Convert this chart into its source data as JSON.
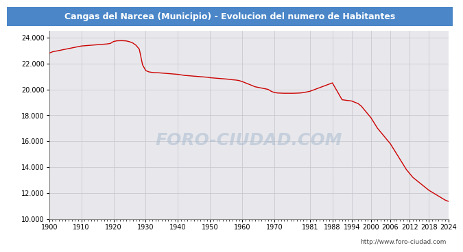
{
  "title": "Cangas del Narcea (Municipio) - Evolucion del numero de Habitantes",
  "title_bg_color": "#4a86c8",
  "title_text_color": "#ffffff",
  "plot_bg_color": "#e8e8ec",
  "fig_bg_color": "#ffffff",
  "line_color": "#cc0000",
  "line_width": 1.0,
  "watermark": "http://www.foro-ciudad.com",
  "watermark_text": "FORO-CIUDAD.COM",
  "xlim": [
    1900,
    2024
  ],
  "ylim": [
    10000,
    24500
  ],
  "yticks": [
    10000,
    12000,
    14000,
    16000,
    18000,
    20000,
    22000,
    24000
  ],
  "xticks": [
    1900,
    1910,
    1920,
    1930,
    1940,
    1950,
    1960,
    1970,
    1981,
    1988,
    1994,
    2000,
    2006,
    2012,
    2018,
    2024
  ],
  "years": [
    1900,
    1901,
    1902,
    1903,
    1904,
    1905,
    1906,
    1907,
    1908,
    1909,
    1910,
    1911,
    1912,
    1913,
    1914,
    1915,
    1916,
    1917,
    1918,
    1919,
    1920,
    1921,
    1922,
    1923,
    1924,
    1925,
    1926,
    1927,
    1928,
    1929,
    1930,
    1931,
    1932,
    1933,
    1934,
    1935,
    1936,
    1937,
    1938,
    1939,
    1940,
    1941,
    1942,
    1943,
    1944,
    1945,
    1946,
    1947,
    1948,
    1949,
    1950,
    1951,
    1952,
    1953,
    1954,
    1955,
    1956,
    1957,
    1958,
    1959,
    1960,
    1961,
    1962,
    1963,
    1964,
    1965,
    1966,
    1967,
    1968,
    1969,
    1970,
    1971,
    1972,
    1973,
    1974,
    1975,
    1976,
    1977,
    1978,
    1979,
    1981,
    1988,
    1991,
    1994,
    1995,
    1996,
    1997,
    1998,
    1999,
    2000,
    2001,
    2002,
    2003,
    2004,
    2005,
    2006,
    2007,
    2008,
    2009,
    2010,
    2011,
    2012,
    2013,
    2014,
    2015,
    2016,
    2017,
    2018,
    2019,
    2020,
    2021,
    2022,
    2023,
    2024
  ],
  "population": [
    22800,
    22900,
    22950,
    23000,
    23050,
    23100,
    23150,
    23200,
    23250,
    23300,
    23350,
    23370,
    23390,
    23410,
    23430,
    23450,
    23470,
    23490,
    23510,
    23550,
    23700,
    23750,
    23760,
    23760,
    23740,
    23680,
    23580,
    23400,
    23100,
    21900,
    21450,
    21350,
    21310,
    21290,
    21280,
    21260,
    21240,
    21220,
    21200,
    21180,
    21160,
    21120,
    21080,
    21060,
    21040,
    21020,
    21000,
    20980,
    20960,
    20940,
    20900,
    20880,
    20860,
    20840,
    20820,
    20800,
    20770,
    20740,
    20720,
    20680,
    20600,
    20500,
    20400,
    20300,
    20200,
    20150,
    20100,
    20050,
    20000,
    19850,
    19750,
    19720,
    19710,
    19700,
    19700,
    19700,
    19700,
    19710,
    19720,
    19750,
    19850,
    20500,
    19200,
    19100,
    19000,
    18900,
    18700,
    18400,
    18100,
    17800,
    17400,
    17000,
    16700,
    16400,
    16100,
    15800,
    15400,
    15000,
    14600,
    14200,
    13800,
    13500,
    13200,
    13000,
    12800,
    12600,
    12400,
    12200,
    12050,
    11900,
    11750,
    11600,
    11450,
    11350
  ]
}
